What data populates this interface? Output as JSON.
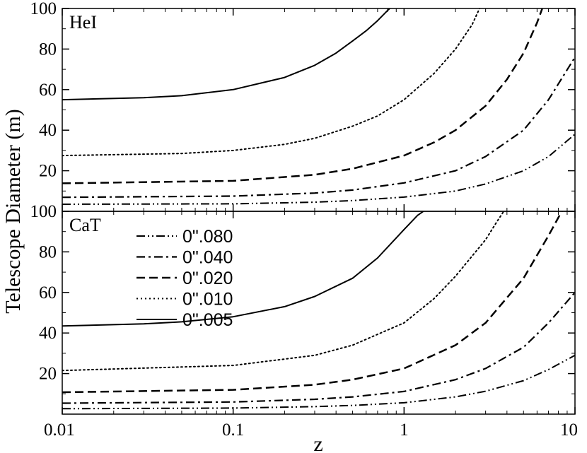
{
  "chart_data": {
    "type": "line",
    "x_scale": "log",
    "xlim": [
      0.01,
      10
    ],
    "xlabel": "z",
    "ylabel": "Telescope Diameter (m)",
    "x_ticks": [
      "0.01",
      "0.1",
      "1",
      "10"
    ],
    "y_ticks": [
      "20",
      "40",
      "60",
      "80",
      "100"
    ],
    "ylim": [
      0,
      100
    ],
    "grid": false,
    "legend_position": "upper-left of bottom panel",
    "legend": [
      {
        "label": "0\".080",
        "style": "dash-dot-dot"
      },
      {
        "label": "0\".040",
        "style": "dash-dot"
      },
      {
        "label": "0\".020",
        "style": "dashed"
      },
      {
        "label": "0\".010",
        "style": "dotted"
      },
      {
        "label": "0\".005",
        "style": "solid"
      }
    ],
    "panels": [
      {
        "label": "HeI",
        "series": [
          {
            "name": "0\".005",
            "style": "solid",
            "x": [
              0.01,
              0.03,
              0.05,
              0.1,
              0.2,
              0.3,
              0.4,
              0.5,
              0.6,
              0.7,
              0.8,
              0.85
            ],
            "y": [
              55,
              56,
              57,
              60,
              66,
              72,
              78,
              84,
              89,
              94,
              99,
              101
            ]
          },
          {
            "name": "0\".010",
            "style": "dotted",
            "x": [
              0.01,
              0.05,
              0.1,
              0.2,
              0.3,
              0.5,
              0.7,
              1,
              1.5,
              2,
              2.5,
              2.8
            ],
            "y": [
              27.5,
              28.5,
              30,
              33,
              36,
              42,
              47,
              55,
              68,
              80,
              92,
              101
            ]
          },
          {
            "name": "0\".020",
            "style": "dashed",
            "x": [
              0.01,
              0.1,
              0.3,
              0.5,
              1,
              1.5,
              2,
              3,
              4,
              5,
              6,
              6.5
            ],
            "y": [
              13.8,
              15,
              18,
              21,
              27.5,
              34,
              40,
              52,
              65,
              78,
              93,
              101
            ]
          },
          {
            "name": "0\".040",
            "style": "dash-dot",
            "x": [
              0.01,
              0.1,
              0.3,
              0.5,
              1,
              2,
              3,
              5,
              7,
              10
            ],
            "y": [
              6.9,
              7.5,
              9,
              10.5,
              14,
              20,
              27,
              40,
              55,
              76
            ]
          },
          {
            "name": "0\".080",
            "style": "dash-dot-dot",
            "x": [
              0.01,
              0.1,
              0.3,
              0.5,
              1,
              2,
              3,
              5,
              7,
              10
            ],
            "y": [
              3.5,
              3.7,
              4.5,
              5.3,
              7,
              10,
              13.5,
              20,
              27,
              38
            ]
          }
        ]
      },
      {
        "label": "CaT",
        "series": [
          {
            "name": "0\".005",
            "style": "solid",
            "x": [
              0.01,
              0.03,
              0.05,
              0.1,
              0.2,
              0.3,
              0.5,
              0.7,
              1,
              1.2,
              1.35
            ],
            "y": [
              43.5,
              44.5,
              45.5,
              48,
              53,
              58,
              67,
              77,
              91,
              98,
              101
            ]
          },
          {
            "name": "0\".010",
            "style": "dotted",
            "x": [
              0.01,
              0.1,
              0.3,
              0.5,
              1,
              1.5,
              2,
              3,
              3.5,
              3.9
            ],
            "y": [
              21.5,
              24,
              29,
              34,
              45,
              57,
              68,
              86,
              95,
              101
            ]
          },
          {
            "name": "0\".020",
            "style": "dashed",
            "x": [
              0.01,
              0.1,
              0.3,
              0.5,
              1,
              2,
              3,
              5,
              7,
              8.5
            ],
            "y": [
              10.8,
              12,
              14.5,
              17,
              22.5,
              34,
              45,
              67,
              88,
              101
            ]
          },
          {
            "name": "0\".040",
            "style": "dash-dot",
            "x": [
              0.01,
              0.1,
              0.3,
              0.5,
              1,
              2,
              3,
              5,
              7,
              10
            ],
            "y": [
              5.4,
              6,
              7.3,
              8.5,
              11.2,
              17,
              22.5,
              33,
              45,
              60
            ]
          },
          {
            "name": "0\".080",
            "style": "dash-dot-dot",
            "x": [
              0.01,
              0.1,
              0.3,
              0.5,
              1,
              2,
              3,
              5,
              7,
              10
            ],
            "y": [
              2.7,
              3,
              3.7,
              4.3,
              5.6,
              8.5,
              11.3,
              16.5,
              22,
              29
            ]
          }
        ]
      }
    ]
  }
}
